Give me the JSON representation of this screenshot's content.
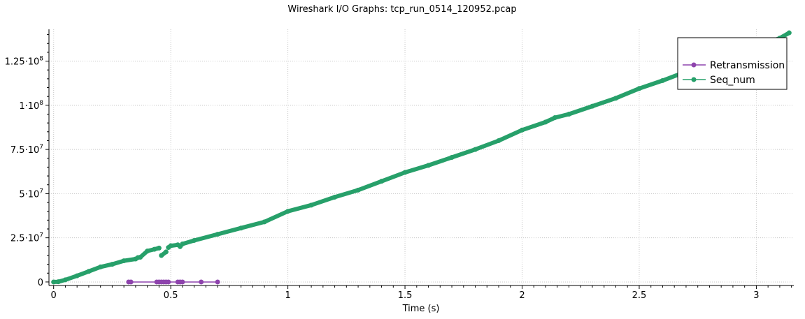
{
  "chart_data": {
    "type": "line",
    "title": "Wireshark I/O Graphs: tcp_run_0514_120952.pcap",
    "xlabel": "Time (s)",
    "ylabel": "",
    "xlim": [
      -0.02,
      3.16
    ],
    "ylim": [
      -2000000,
      143000000
    ],
    "x_ticks": [
      {
        "value": 0,
        "label": "0"
      },
      {
        "value": 0.5,
        "label": "0.5"
      },
      {
        "value": 1,
        "label": "1"
      },
      {
        "value": 1.5,
        "label": "1.5"
      },
      {
        "value": 2,
        "label": "2"
      },
      {
        "value": 2.5,
        "label": "2.5"
      },
      {
        "value": 3,
        "label": "3"
      }
    ],
    "y_ticks": [
      {
        "value": 0,
        "label": "0"
      },
      {
        "value": 25000000,
        "label": "2.5·10",
        "exp": "7"
      },
      {
        "value": 50000000,
        "label": "5·10",
        "exp": "7"
      },
      {
        "value": 75000000,
        "label": "7.5·10",
        "exp": "7"
      },
      {
        "value": 100000000,
        "label": "1·10",
        "exp": "8"
      },
      {
        "value": 125000000,
        "label": "1.25·10",
        "exp": "8"
      }
    ],
    "grid": true,
    "legend_position": "top-right",
    "series": [
      {
        "name": "Retransmission",
        "color": "#8e44ad",
        "marker": "circle",
        "points": [
          [
            0.32,
            0
          ],
          [
            0.33,
            0
          ],
          [
            0.44,
            0
          ],
          [
            0.45,
            0
          ],
          [
            0.46,
            0
          ],
          [
            0.47,
            0
          ],
          [
            0.48,
            0
          ],
          [
            0.49,
            0
          ],
          [
            0.53,
            0
          ],
          [
            0.54,
            0
          ],
          [
            0.55,
            0
          ],
          [
            0.63,
            0
          ],
          [
            0.7,
            0
          ]
        ]
      },
      {
        "name": "Seq_num",
        "color": "#27a06a",
        "marker": "circle",
        "segments": [
          [
            [
              0.0,
              0
            ],
            [
              0.02,
              100000
            ],
            [
              0.05,
              1200000
            ],
            [
              0.1,
              3500000
            ],
            [
              0.15,
              6000000
            ],
            [
              0.2,
              8500000
            ],
            [
              0.25,
              10000000
            ],
            [
              0.3,
              12000000
            ],
            [
              0.35,
              13000000
            ],
            [
              0.36,
              13800000
            ]
          ],
          [
            [
              0.37,
              14000000
            ],
            [
              0.4,
              17500000
            ],
            [
              0.43,
              18500000
            ],
            [
              0.45,
              19200000
            ]
          ],
          [
            [
              0.46,
              15000000
            ],
            [
              0.48,
              17000000
            ]
          ],
          [
            [
              0.49,
              19500000
            ],
            [
              0.5,
              20500000
            ],
            [
              0.53,
              21000000
            ]
          ],
          [
            [
              0.54,
              20000000
            ],
            [
              0.55,
              21500000
            ],
            [
              0.6,
              23500000
            ],
            [
              0.7,
              27000000
            ],
            [
              0.8,
              30500000
            ],
            [
              0.9,
              34000000
            ],
            [
              1.0,
              40000000
            ],
            [
              1.1,
              43500000
            ],
            [
              1.2,
              48000000
            ],
            [
              1.3,
              52000000
            ],
            [
              1.4,
              57000000
            ],
            [
              1.5,
              62000000
            ],
            [
              1.6,
              66000000
            ],
            [
              1.7,
              70500000
            ],
            [
              1.8,
              75000000
            ],
            [
              1.9,
              80000000
            ],
            [
              2.0,
              86000000
            ],
            [
              2.1,
              90500000
            ],
            [
              2.14,
              93000000
            ],
            [
              2.2,
              95000000
            ],
            [
              2.3,
              99500000
            ],
            [
              2.4,
              104000000
            ],
            [
              2.5,
              109500000
            ],
            [
              2.6,
              114000000
            ],
            [
              2.7,
              119000000
            ],
            [
              2.8,
              124000000
            ],
            [
              2.9,
              128500000
            ],
            [
              3.0,
              133000000
            ],
            [
              3.1,
              138000000
            ],
            [
              3.14,
              141000000
            ]
          ]
        ]
      }
    ]
  }
}
